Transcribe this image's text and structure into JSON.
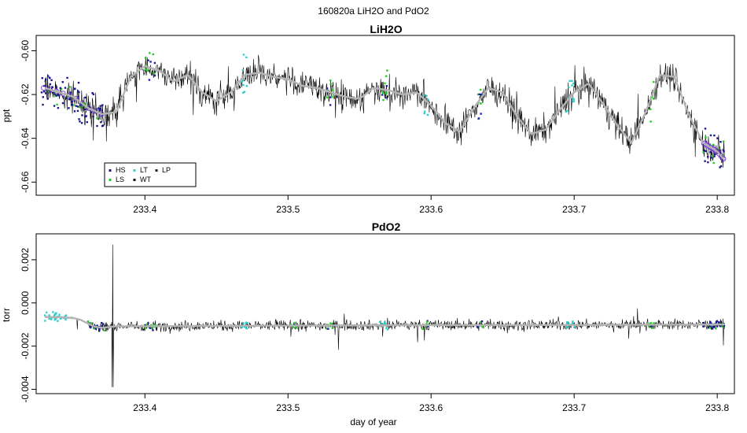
{
  "figure": {
    "title": "160820a   LiH2O and PdO2",
    "xlabel": "day of year"
  },
  "colors": {
    "trace": "#000000",
    "smooth": "#b4b4b4",
    "HS": "#1a1a8c",
    "LS": "#22cc22",
    "LT": "#33cccc",
    "WT": "#111111",
    "LP": "#222222",
    "ring": "#7a3cd6",
    "blue": "#1c1ca8"
  },
  "chart_data": [
    {
      "type": "line",
      "title": "LiH2O",
      "xlabel": "",
      "ylabel": "ppt",
      "xlim": [
        233.324,
        233.812
      ],
      "ylim": [
        -0.666,
        -0.593
      ],
      "xticks": [
        233.4,
        233.5,
        233.6,
        233.7,
        233.8
      ],
      "xtick_labels": [
        "233.4",
        "233.5",
        "233.6",
        "233.7",
        "233.8"
      ],
      "yticks": [
        -0.66,
        -0.64,
        -0.62,
        -0.6
      ],
      "ytick_labels": [
        "-0.66",
        "-0.64",
        "-0.62",
        "-0.60"
      ],
      "grid": false,
      "legend": {
        "position": "bottom-left",
        "entries": [
          "HS",
          "LS",
          "LT",
          "WT",
          "LP"
        ]
      },
      "series": [
        {
          "x": [
            233.33,
            233.34,
            233.35,
            233.36,
            233.37,
            233.38,
            233.39,
            233.4,
            233.41,
            233.42,
            233.43,
            233.44,
            233.45,
            233.46,
            233.47,
            233.48,
            233.49,
            233.5,
            233.51,
            233.52,
            233.53,
            233.54,
            233.55,
            233.56,
            233.57,
            233.58,
            233.59,
            233.6,
            233.61,
            233.62,
            233.63,
            233.64,
            233.65,
            233.66,
            233.67,
            233.68,
            233.69,
            233.7,
            233.71,
            233.72,
            233.73,
            233.74,
            233.75,
            233.76,
            233.77,
            233.78,
            233.79,
            233.8,
            233.805
          ],
          "y": [
            -0.617,
            -0.619,
            -0.621,
            -0.626,
            -0.629,
            -0.628,
            -0.612,
            -0.607,
            -0.609,
            -0.614,
            -0.611,
            -0.619,
            -0.623,
            -0.619,
            -0.611,
            -0.61,
            -0.612,
            -0.613,
            -0.616,
            -0.617,
            -0.619,
            -0.621,
            -0.622,
            -0.617,
            -0.618,
            -0.62,
            -0.619,
            -0.625,
            -0.633,
            -0.637,
            -0.626,
            -0.617,
            -0.619,
            -0.63,
            -0.638,
            -0.636,
            -0.627,
            -0.619,
            -0.615,
            -0.624,
            -0.634,
            -0.642,
            -0.628,
            -0.611,
            -0.612,
            -0.629,
            -0.642,
            -0.646,
            -0.65
          ]
        }
      ]
    },
    {
      "type": "line",
      "title": "PdO2",
      "xlabel": "day of year",
      "ylabel": "torr",
      "xlim": [
        233.324,
        233.812
      ],
      "ylim": [
        -0.0042,
        0.0032
      ],
      "xticks": [
        233.4,
        233.5,
        233.6,
        233.7,
        233.8
      ],
      "xtick_labels": [
        "233.4",
        "233.5",
        "233.6",
        "233.7",
        "233.8"
      ],
      "yticks": [
        -0.004,
        -0.002,
        0.0,
        0.002
      ],
      "ytick_labels": [
        "-0.004",
        "-0.002",
        "0.000",
        "0.002"
      ],
      "grid": false,
      "series": [
        {
          "x": [
            233.33,
            233.34,
            233.35,
            233.355,
            233.36,
            233.365,
            233.37,
            233.38,
            233.4,
            233.5,
            233.6,
            233.7,
            233.8,
            233.805
          ],
          "y": [
            -0.00065,
            -0.00066,
            -0.0007,
            -0.00078,
            -0.00095,
            -0.0011,
            -0.00115,
            -0.00108,
            -0.00108,
            -0.00105,
            -0.00103,
            -0.00102,
            -0.001,
            -0.001
          ]
        }
      ]
    }
  ]
}
